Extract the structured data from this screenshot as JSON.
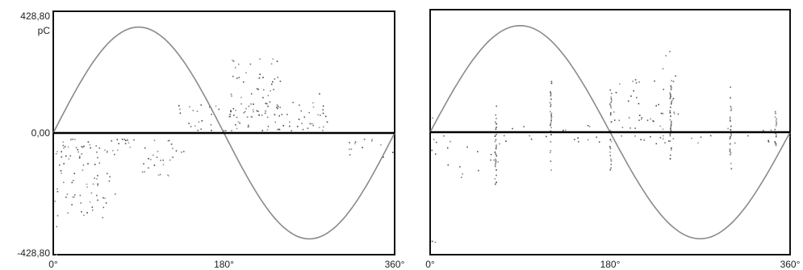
{
  "chart_data": [
    {
      "type": "scatter",
      "title": "",
      "xlabel": "",
      "ylabel": "",
      "y_unit": "pC",
      "y_tick_labels": {
        "top": "428,80",
        "middle": "0,00",
        "bottom": "-428,80"
      },
      "x_tick_labels": [
        "0°",
        "180°",
        "360°"
      ],
      "xlim": [
        0,
        360
      ],
      "ylim": [
        -428.8,
        428.8
      ],
      "reference_sine": {
        "color": "#8a8a8a"
      },
      "grid": false,
      "legend": "none",
      "series": [
        {
          "clusters": [
            {
              "x": [
                0,
                4
              ],
              "y": [
                -430,
                -40
              ],
              "density": 0.5
            },
            {
              "x": [
                2,
                65
              ],
              "y": [
                -300,
                -20
              ],
              "density": 1
            },
            {
              "x": [
                65,
                135
              ],
              "y": [
                -150,
                -20
              ],
              "density": 0.8
            },
            {
              "x": [
                125,
                150
              ],
              "y": [
                -95,
                -60
              ],
              "density": 0.6
            },
            {
              "x": [
                130,
                290
              ],
              "y": [
                10,
                110
              ],
              "density": 1
            },
            {
              "x": [
                185,
                245
              ],
              "y": [
                60,
                285
              ],
              "density": 0.9
            },
            {
              "x": [
                270,
                295
              ],
              "y": [
                60,
                165
              ],
              "density": 0.4
            },
            {
              "x": [
                300,
                360
              ],
              "y": [
                -90,
                -20
              ],
              "density": 0.6
            }
          ]
        }
      ]
    },
    {
      "type": "scatter",
      "title": "",
      "xlabel": "",
      "ylabel": "",
      "x_tick_labels": [
        "0°",
        "180°",
        "360°"
      ],
      "xlim": [
        0,
        360
      ],
      "ylim": [
        -428.8,
        428.8
      ],
      "reference_sine": {
        "color": "#8a8a8a"
      },
      "grid": false,
      "legend": "none",
      "series": [
        {
          "clusters": [
            {
              "x": [
                0,
                360
              ],
              "y": [
                -40,
                -10
              ],
              "density": 0.7
            },
            {
              "x": [
                0,
                360
              ],
              "y": [
                8,
                28
              ],
              "density": 0.4
            },
            {
              "x": [
                0,
                70
              ],
              "y": [
                -170,
                -50
              ],
              "density": 0.3
            },
            {
              "x": [
                0,
                5
              ],
              "y": [
                -430,
                100
              ],
              "density": 0.3
            },
            {
              "x": [
                180,
                250
              ],
              "y": [
                40,
                240
              ],
              "density": 0.5
            },
            {
              "x": [
                235,
                250
              ],
              "y": [
                180,
                290
              ],
              "density": 0.4
            }
          ],
          "vertical_lines": [
            {
              "x": 65,
              "y": [
                -200,
                100
              ]
            },
            {
              "x": 120,
              "y": [
                -140,
                180
              ]
            },
            {
              "x": 180,
              "y": [
                -130,
                150
              ]
            },
            {
              "x": 240,
              "y": [
                -100,
                170
              ]
            },
            {
              "x": 300,
              "y": [
                -140,
                160
              ]
            },
            {
              "x": 345,
              "y": [
                -60,
                80
              ]
            }
          ]
        }
      ]
    }
  ]
}
